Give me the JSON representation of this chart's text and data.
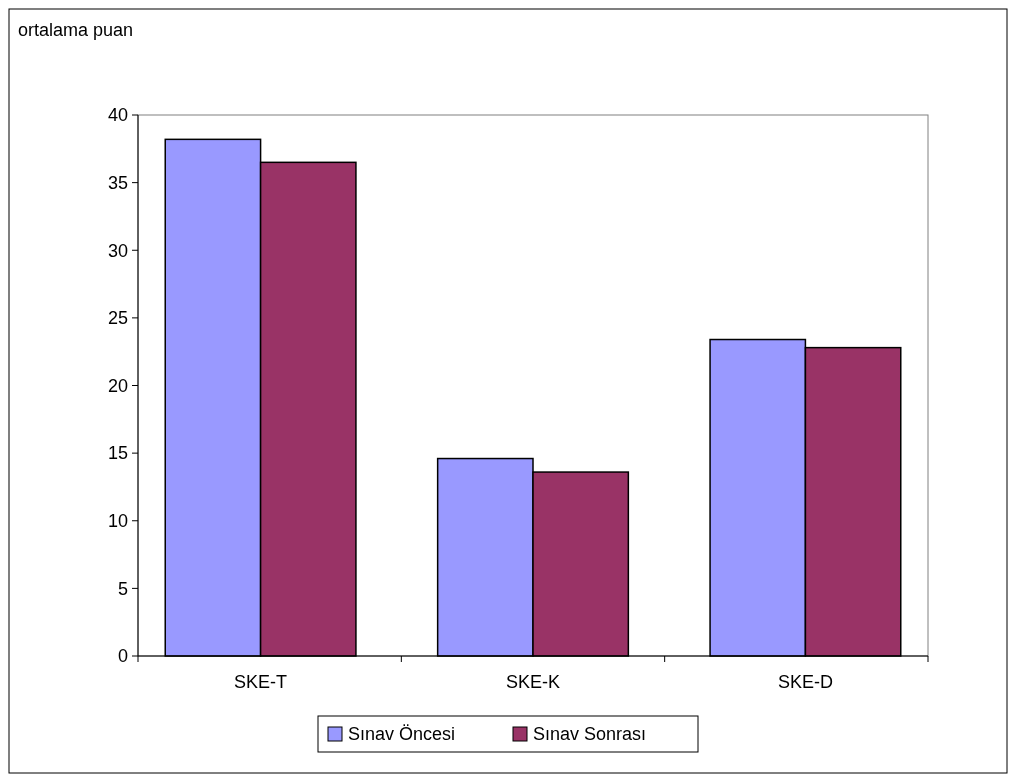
{
  "chart_data": {
    "type": "bar",
    "ylabel": "ortalama puan",
    "categories": [
      "SKE-T",
      "SKE-K",
      "SKE-D"
    ],
    "series": [
      {
        "name": "Sınav Öncesi",
        "color": "#9999ff",
        "values": [
          38.2,
          14.6,
          23.4
        ]
      },
      {
        "name": "Sınav Sonrası",
        "color": "#993366",
        "values": [
          36.5,
          13.6,
          22.8
        ]
      }
    ],
    "ylim": [
      0,
      40
    ],
    "yticks": [
      0,
      5,
      10,
      15,
      20,
      25,
      30,
      35,
      40
    ],
    "grid": false,
    "legend": "bottom"
  }
}
